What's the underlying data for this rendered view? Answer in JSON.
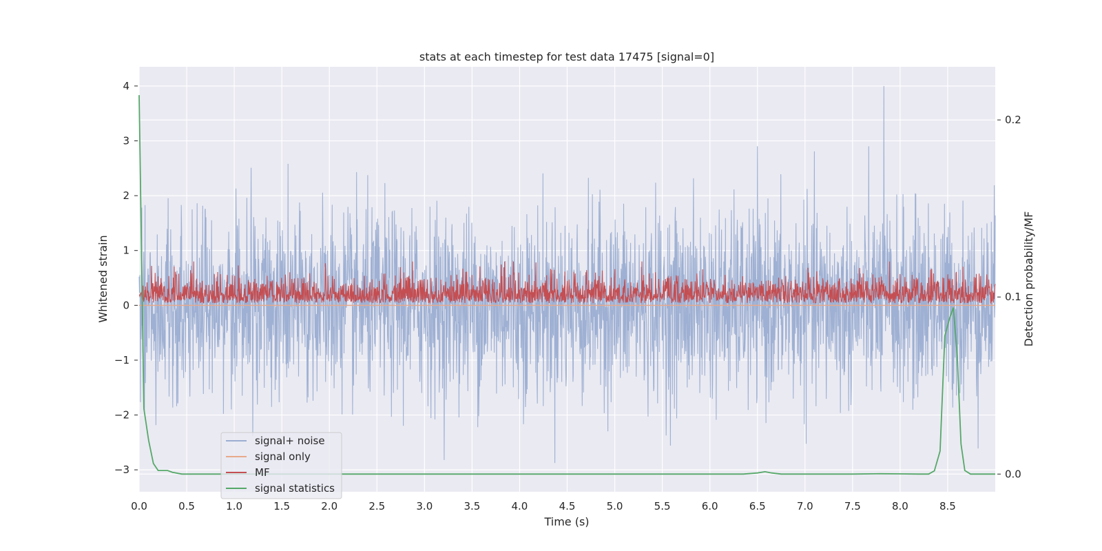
{
  "chart_data": {
    "type": "line",
    "title": "stats at each timestep for test data 17475 [signal=0]",
    "xlabel": "Time (s)",
    "ylabel": "Whitened strain",
    "y2label": "Detection probability/MF",
    "xlim": [
      0,
      9.0
    ],
    "ylim": [
      -3.4,
      4.35
    ],
    "y2lim": [
      -0.01,
      0.23
    ],
    "grid": true,
    "legend_position": "lower-left",
    "xticks": [
      "0.0",
      "0.5",
      "1.0",
      "1.5",
      "2.0",
      "2.5",
      "3.0",
      "3.5",
      "4.0",
      "4.5",
      "5.0",
      "5.5",
      "6.0",
      "6.5",
      "7.0",
      "7.5",
      "8.0",
      "8.5"
    ],
    "yticks": [
      "4",
      "3",
      "2",
      "1",
      "0",
      "−1",
      "−2",
      "−3"
    ],
    "y2ticks": [
      "0.2",
      "0.1",
      "0.0"
    ],
    "series": [
      {
        "name": "signal+ noise",
        "color": "#9aadd1",
        "axis": "left",
        "description": "whitened strain noise, roughly ±2 with extremes from -3.0 to 4.0",
        "range": [
          -3.0,
          4.0
        ],
        "notable_peak": {
          "x": 7.83,
          "y": 4.0
        }
      },
      {
        "name": "signal only",
        "color": "#e8a98a",
        "axis": "left",
        "x": [
          0,
          9.0
        ],
        "y": [
          0,
          0
        ]
      },
      {
        "name": "MF",
        "color": "#c44e52",
        "axis": "left",
        "description": "matched filter output between about 0 and 0.8",
        "range": [
          0.0,
          0.8
        ]
      },
      {
        "name": "signal statistics",
        "color": "#55a868",
        "axis": "right",
        "x": [
          0.0,
          0.05,
          0.1,
          0.15,
          0.2,
          0.25,
          0.3,
          0.35,
          0.45,
          0.6,
          1.0,
          2.0,
          3.0,
          4.0,
          5.0,
          6.0,
          6.35,
          6.5,
          6.58,
          6.65,
          6.75,
          6.9,
          7.5,
          7.8,
          8.0,
          8.2,
          8.3,
          8.36,
          8.42,
          8.47,
          8.52,
          8.56,
          8.6,
          8.64,
          8.68,
          8.74,
          8.8,
          8.9,
          9.0
        ],
        "y": [
          0.214,
          0.037,
          0.019,
          0.006,
          0.002,
          0.002,
          0.002,
          0.001,
          0.0,
          0.0,
          0.0,
          0.0,
          0.0,
          0.0,
          0.0,
          0.0,
          0.0,
          0.0006,
          0.0013,
          0.0006,
          0.0,
          0.0,
          0.0,
          0.0002,
          0.0001,
          0.0,
          0.0,
          0.0018,
          0.013,
          0.078,
          0.088,
          0.094,
          0.067,
          0.017,
          0.002,
          0.0,
          0.0,
          0.0,
          0.0
        ]
      }
    ]
  }
}
